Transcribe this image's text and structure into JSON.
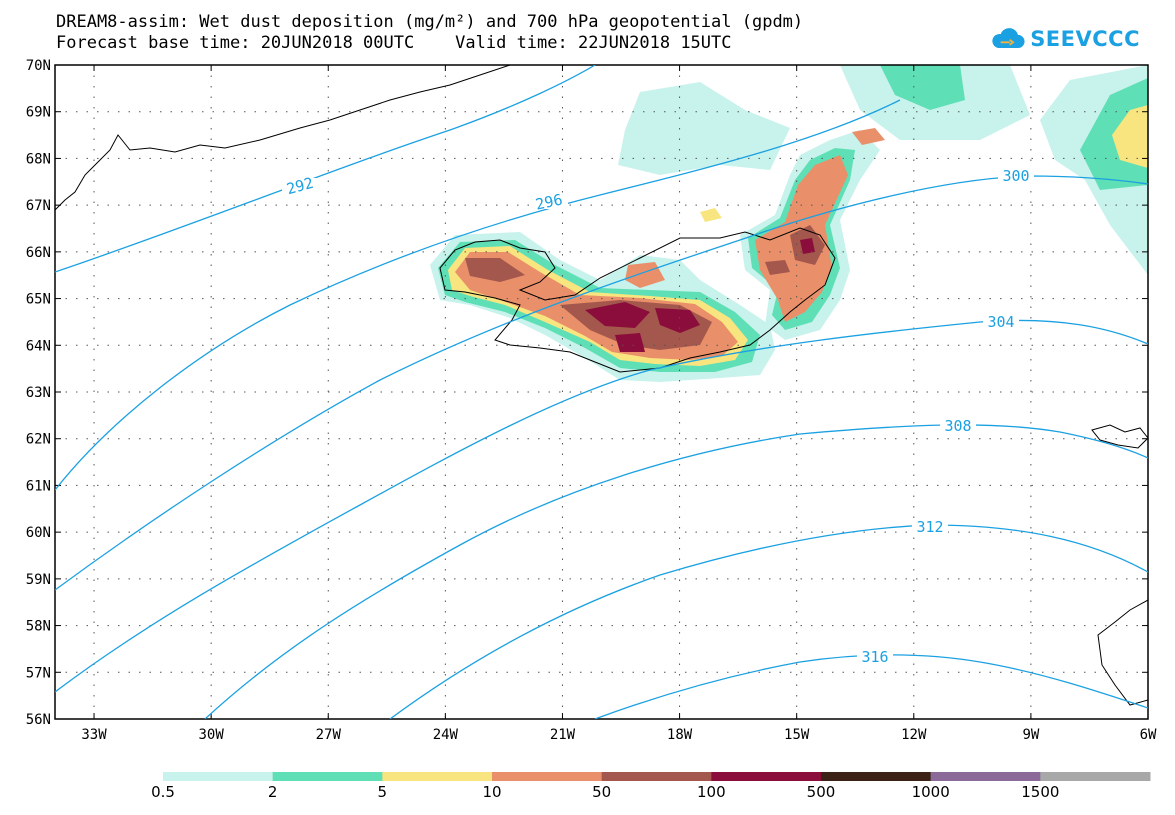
{
  "title_line1": "DREAM8-assim: Wet dust deposition (mg/m²) and 700 hPa geopotential (gpdm)",
  "title_line2": "Forecast base time: 20JUN2018 00UTC    Valid time: 22JUN2018 15UTC",
  "logo_text": "SEEVCCC",
  "map": {
    "lat_labels": [
      "70N",
      "69N",
      "68N",
      "67N",
      "66N",
      "65N",
      "64N",
      "63N",
      "62N",
      "61N",
      "60N",
      "59N",
      "58N",
      "57N",
      "56N"
    ],
    "lon_labels": [
      "33W",
      "30W",
      "27W",
      "24W",
      "21W",
      "18W",
      "15W",
      "12W",
      "9W",
      "6W"
    ],
    "contour_labels": [
      "292",
      "296",
      "300",
      "304",
      "308",
      "312",
      "316"
    ]
  },
  "colorbar": {
    "labels": [
      "0.5",
      "2",
      "5",
      "10",
      "50",
      "100",
      "500",
      "1000",
      "1500"
    ],
    "colors": [
      "#c8f2ec",
      "#5fdfb5",
      "#f8e57f",
      "#e9906a",
      "#a4574c",
      "#8b0d3b",
      "#3c2216",
      "#8b6a99",
      "#a8a8a8"
    ]
  }
}
